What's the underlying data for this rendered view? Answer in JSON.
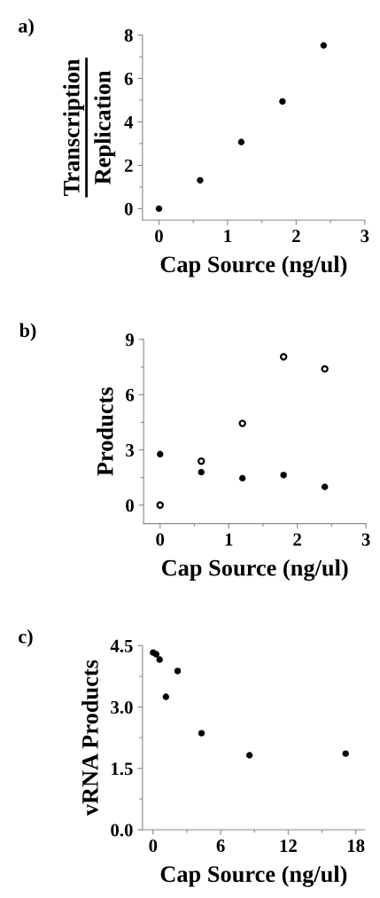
{
  "chart_data": [
    {
      "type": "scatter",
      "title": "a)",
      "xlabel": "Cap Source (ng/ul)",
      "ylabel": "Transcription\nReplication",
      "xlim": [
        -0.24,
        3
      ],
      "xticks": [
        0,
        1,
        2,
        3
      ],
      "ylim": [
        -0.52,
        8
      ],
      "yticks": [
        0,
        2,
        4,
        6,
        8
      ],
      "marker": "circle",
      "grid": false,
      "legend": false,
      "series": [
        {
          "color": "#000000",
          "x": [
            0,
            0.6,
            1.2,
            1.8,
            2.4
          ],
          "values": [
            0,
            1.31,
            3.07,
            4.94,
            7.52
          ]
        }
      ]
    },
    {
      "type": "scatter",
      "title": "b)",
      "xlabel": "Cap Source (ng/ul)",
      "ylabel": "Products",
      "xlim": [
        -0.24,
        3
      ],
      "xticks": [
        0,
        1,
        2,
        3
      ],
      "ylim": [
        -1,
        9
      ],
      "yticks": [
        0,
        3,
        6,
        9
      ],
      "marker": "circle",
      "grid": false,
      "legend": false,
      "series": [
        {
          "color": "#000000",
          "x": [
            0,
            0.6,
            1.2,
            1.8,
            2.4
          ],
          "values": [
            2.77,
            1.79,
            1.46,
            1.63,
            0.99
          ]
        },
        {
          "color": "#ffffff",
          "x": [
            0,
            0.6,
            1.2,
            1.8,
            2.4
          ],
          "values": [
            0,
            2.39,
            4.44,
            8.06,
            7.4
          ]
        }
      ]
    },
    {
      "type": "scatter",
      "title": "c)",
      "xlabel": "Cap Source (ng/ul)",
      "ylabel": "vRNA Products",
      "xlim": [
        -0.94,
        18.8
      ],
      "xticks": [
        0,
        6,
        12,
        18
      ],
      "ylim": [
        0,
        4.5
      ],
      "yticks": [
        {
          "value": 0,
          "label": "0.0"
        },
        {
          "value": 1.5,
          "label": "1.5"
        },
        {
          "value": 3,
          "label": "3.0"
        },
        {
          "value": 4.5,
          "label": "4.5"
        }
      ],
      "marker": "circle",
      "grid": false,
      "legend": false,
      "series": [
        {
          "color": "#000000",
          "x": [
            0,
            0.28,
            0.58,
            1.14,
            2.18,
            4.3,
            8.56,
            17.1
          ],
          "values": [
            4.33,
            4.29,
            4.16,
            3.25,
            3.88,
            2.36,
            1.82,
            1.86
          ]
        }
      ]
    }
  ]
}
